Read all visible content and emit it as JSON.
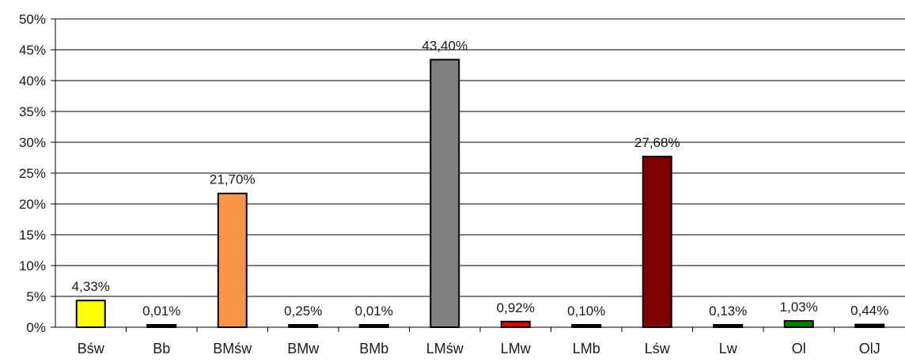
{
  "chart_data": {
    "type": "bar",
    "title": "",
    "xlabel": "",
    "ylabel": "",
    "categories": [
      "Bśw",
      "Bb",
      "BMśw",
      "BMw",
      "BMb",
      "LMśw",
      "LMw",
      "LMb",
      "Lśw",
      "Lw",
      "Ol",
      "OlJ"
    ],
    "values": [
      4.33,
      0.01,
      21.7,
      0.25,
      0.01,
      43.4,
      0.92,
      0.1,
      27.68,
      0.13,
      1.03,
      0.44
    ],
    "value_labels": [
      "4,33%",
      "0,01%",
      "21,70%",
      "0,25%",
      "0,01%",
      "43,40%",
      "0,92%",
      "0,10%",
      "27,68%",
      "0,13%",
      "1,03%",
      "0,44%"
    ],
    "bar_colors": [
      "#ffff00",
      "#000000",
      "#f79646",
      "#000000",
      "#000000",
      "#808080",
      "#e00000",
      "#000000",
      "#7f0000",
      "#000000",
      "#008000",
      "#000000"
    ],
    "yticks": [
      0,
      5,
      10,
      15,
      20,
      25,
      30,
      35,
      40,
      45,
      50
    ],
    "ytick_labels": [
      "0%",
      "5%",
      "10%",
      "15%",
      "20%",
      "25%",
      "30%",
      "35%",
      "40%",
      "45%",
      "50%"
    ],
    "ylim": [
      0,
      50
    ],
    "grid": true,
    "legend": false
  }
}
